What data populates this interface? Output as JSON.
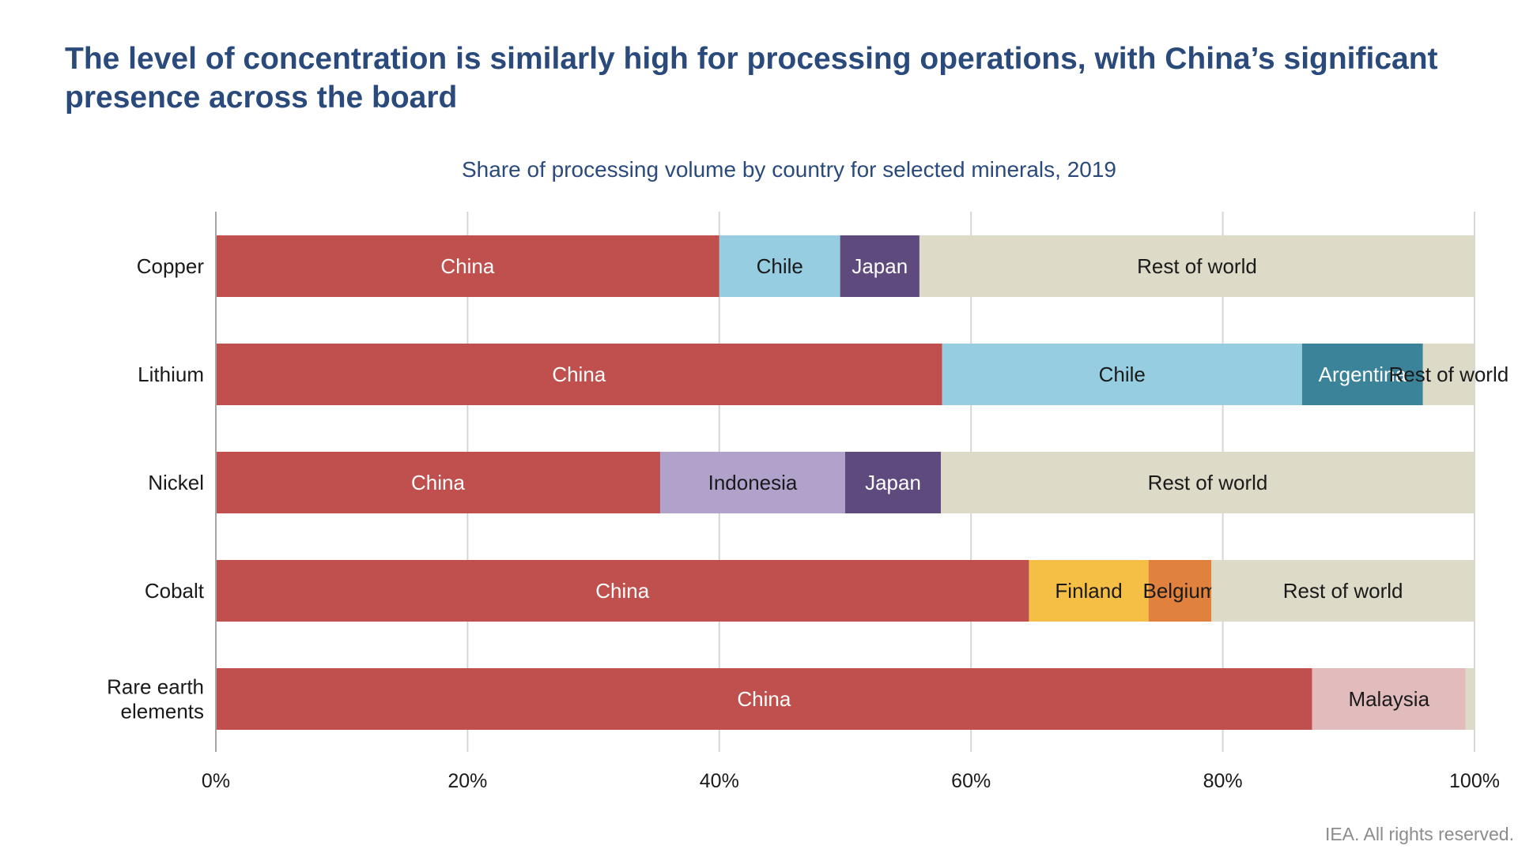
{
  "headline": "The level of concentration is similarly high for processing operations, with China’s significant presence across the board",
  "footer": "IEA. All rights reserved.",
  "chart_data": {
    "type": "bar",
    "orientation": "horizontal",
    "stacked": true,
    "title": "Share of processing volume by country for selected minerals, 2019",
    "xlabel": "",
    "ylabel": "",
    "xlim": [
      0,
      100
    ],
    "x_ticks": [
      0,
      20,
      40,
      60,
      80,
      100
    ],
    "x_tick_labels": [
      "0%",
      "20%",
      "40%",
      "60%",
      "80%",
      "100%"
    ],
    "grid": true,
    "legend": "none",
    "categories": [
      {
        "label_lines": [
          "Copper"
        ]
      },
      {
        "label_lines": [
          "Lithium"
        ]
      },
      {
        "label_lines": [
          "Nickel"
        ]
      },
      {
        "label_lines": [
          "Cobalt"
        ]
      },
      {
        "label_lines": [
          "Rare earth",
          "elements"
        ]
      }
    ],
    "colors": {
      "China": "#c0504d",
      "Chile": "#96cde0",
      "Japan": "#5f4a7e",
      "Argentina": "#3b8398",
      "Indonesia": "#b0a2cb",
      "Finland": "#f5be45",
      "Belgium": "#e0823d",
      "Malaysia": "#e2bcbc",
      "Rest of world": "#dddac7"
    },
    "label_colors": {
      "dark": "#1a1a1a",
      "light": "#ffffff"
    },
    "series": [
      {
        "name": "China",
        "label": "China",
        "label_tone": "light",
        "values": [
          40,
          57.7,
          35.3,
          64.6,
          87.1
        ]
      },
      {
        "name": "Chile",
        "label": "Chile",
        "label_tone": "dark",
        "values": [
          9.6,
          28.6,
          0,
          0,
          0
        ]
      },
      {
        "name": "Argentina",
        "label": "Argentina",
        "label_tone": "light",
        "values": [
          0,
          9.6,
          0,
          0,
          0
        ]
      },
      {
        "name": "Indonesia",
        "label": "Indonesia",
        "label_tone": "dark",
        "values": [
          0,
          0,
          14.7,
          0,
          0
        ]
      },
      {
        "name": "Japan",
        "label": "Japan",
        "label_tone": "light",
        "values": [
          6.3,
          0,
          7.6,
          0,
          0
        ]
      },
      {
        "name": "Finland",
        "label": "Finland",
        "label_tone": "dark",
        "values": [
          0,
          0,
          0,
          9.5,
          0
        ]
      },
      {
        "name": "Belgium",
        "label": "Belgium",
        "label_tone": "dark",
        "values": [
          0,
          0,
          0,
          5,
          0
        ]
      },
      {
        "name": "Malaysia",
        "label": "Malaysia",
        "label_tone": "dark",
        "values": [
          0,
          0,
          0,
          0,
          12.2
        ]
      },
      {
        "name": "Rest of world",
        "label": "Rest of world",
        "label_tone": "dark",
        "values": [
          44.1,
          4.1,
          42.4,
          20.9,
          0.7
        ]
      }
    ]
  }
}
